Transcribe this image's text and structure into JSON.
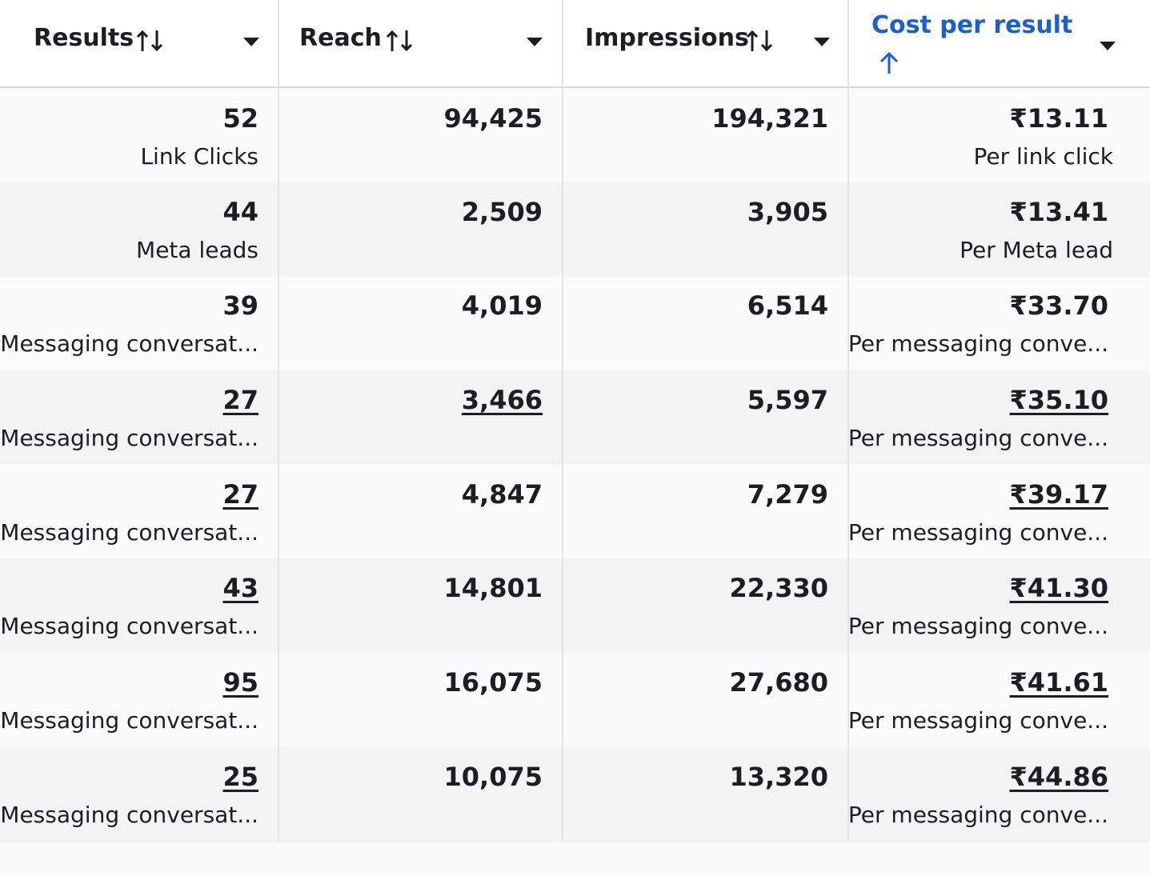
{
  "header": {
    "columns": [
      "Results",
      "Reach",
      "Impressions",
      "Cost per result"
    ]
  },
  "table": {
    "rows": [
      {
        "results": "52",
        "result_type": "Link Clicks",
        "reach": "94,425",
        "impressions": "194,321",
        "cost": "₹13.11",
        "cost_type": "Per link click"
      },
      {
        "results": "44",
        "result_type": "Meta leads",
        "reach": "2,509",
        "impressions": "3,905",
        "cost": "₹13.41",
        "cost_type": "Per Meta lead"
      },
      {
        "results": "39",
        "result_type": "Messaging conversat...",
        "reach": "4,019",
        "impressions": "6,514",
        "cost": "₹33.70",
        "cost_type": "Per messaging conve..."
      },
      {
        "results": "27",
        "result_type": "Messaging conversat...",
        "reach": "3,466",
        "impressions": "5,597",
        "cost": "₹35.10",
        "cost_type": "Per messaging conve..."
      },
      {
        "results": "27",
        "result_type": "Messaging conversat...",
        "reach": "4,847",
        "impressions": "7,279",
        "cost": "₹39.17",
        "cost_type": "Per messaging conve..."
      },
      {
        "results": "43",
        "result_type": "Messaging conversat...",
        "reach": "14,801",
        "impressions": "22,330",
        "cost": "₹41.30",
        "cost_type": "Per messaging conve..."
      },
      {
        "results": "95",
        "result_type": "Messaging conversat...",
        "reach": "16,075",
        "impressions": "27,680",
        "cost": "₹41.61",
        "cost_type": "Per messaging conve..."
      },
      {
        "results": "25",
        "result_type": "Messaging conversat...",
        "reach": "10,075",
        "impressions": "13,320",
        "cost": "₹44.86",
        "cost_type": "Per messaging conve..."
      }
    ]
  }
}
